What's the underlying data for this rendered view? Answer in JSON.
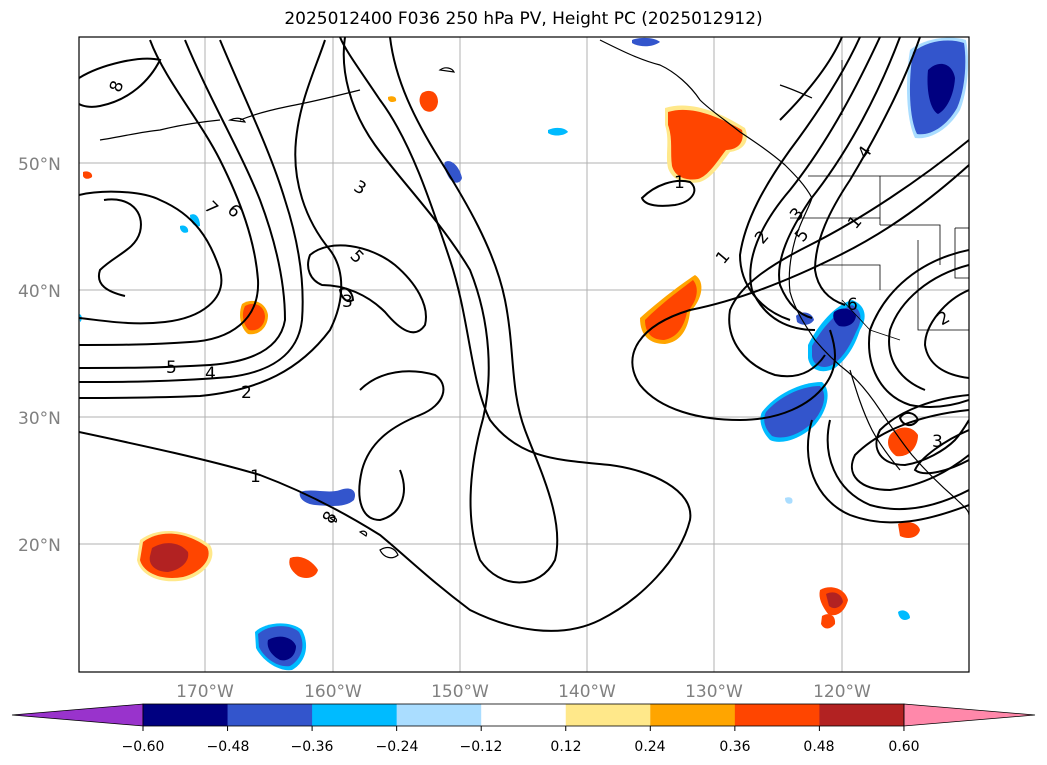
{
  "title": "2025012400 F036 250 hPa PV, Height PC (2025012912)",
  "map": {
    "lat_labels": [
      "50°N",
      "40°N",
      "30°N",
      "20°N"
    ],
    "lon_labels": [
      "170°W",
      "160°W",
      "150°W",
      "140°W",
      "130°W",
      "120°W"
    ],
    "contour_labels": [
      "8",
      "7",
      "6",
      "5",
      "4",
      "2",
      "1",
      "3",
      "5",
      "3",
      "1",
      "1",
      "2",
      "3",
      "5",
      "4",
      "6",
      "2",
      "3",
      "8",
      "1"
    ]
  },
  "colorbar": {
    "ticks": [
      "−0.60",
      "−0.48",
      "−0.36",
      "−0.24",
      "−0.12",
      "0.12",
      "0.24",
      "0.36",
      "0.48",
      "0.60"
    ],
    "colors": [
      "#9933cc",
      "#000080",
      "#3355cc",
      "#00bbff",
      "#aaddff",
      "#ffffff",
      "#ffe88a",
      "#ffa500",
      "#ff4500",
      "#b22222",
      "#ff88aa"
    ]
  }
}
